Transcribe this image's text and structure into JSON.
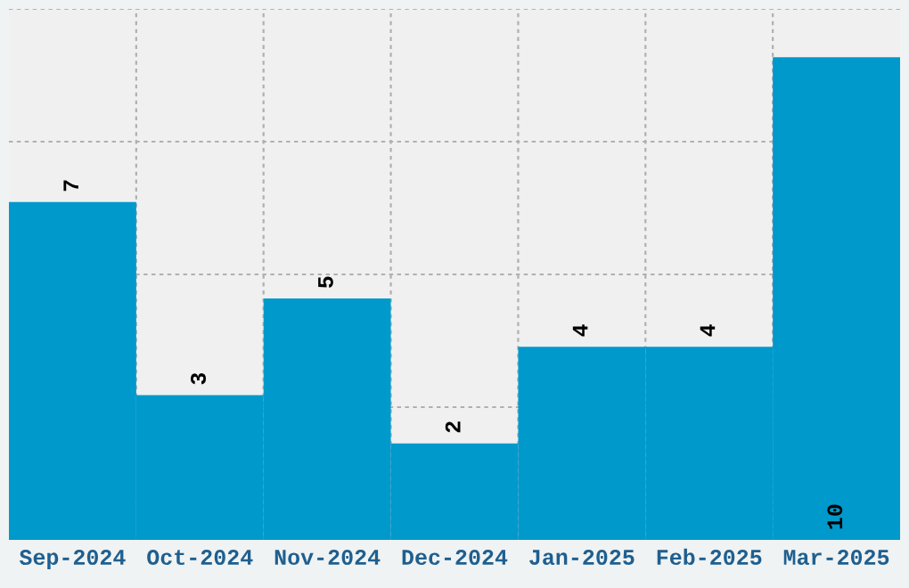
{
  "chart_data": {
    "type": "bar",
    "categories": [
      "Sep-2024",
      "Oct-2024",
      "Nov-2024",
      "Dec-2024",
      "Jan-2025",
      "Feb-2025",
      "Mar-2025"
    ],
    "values": [
      7,
      3,
      5,
      2,
      4,
      4,
      10
    ],
    "color": "#0099cc",
    "ylim": [
      0,
      11
    ],
    "tick_labels": "x",
    "grid": true,
    "data_labels": true
  }
}
